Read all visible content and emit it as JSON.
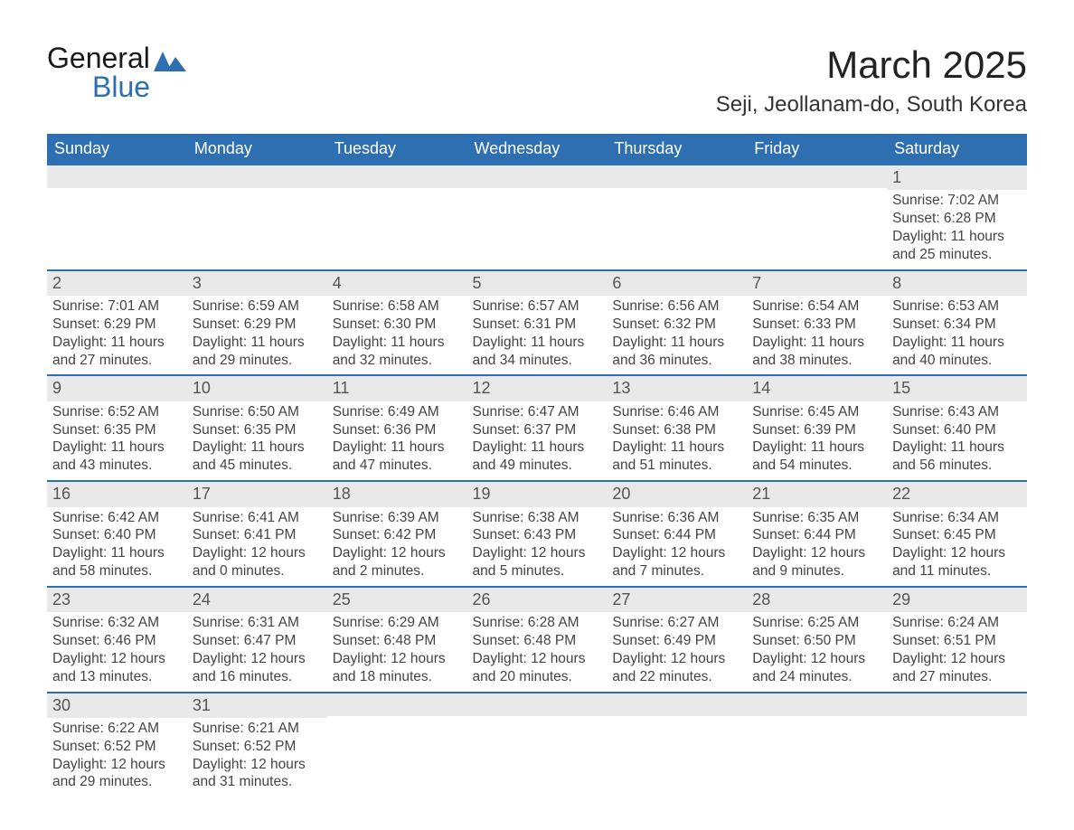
{
  "logo": {
    "text_general": "General",
    "text_blue": "Blue"
  },
  "header": {
    "month_title": "March 2025",
    "location": "Seji, Jeollanam-do, South Korea"
  },
  "colors": {
    "header_bg": "#2d6fb0",
    "header_text": "#ffffff",
    "daynum_bg": "#e9e9e9",
    "row_border": "#2d6fb0",
    "body_text": "#444444",
    "page_bg": "#ffffff"
  },
  "day_labels": [
    "Sunday",
    "Monday",
    "Tuesday",
    "Wednesday",
    "Thursday",
    "Friday",
    "Saturday"
  ],
  "weeks": [
    [
      null,
      null,
      null,
      null,
      null,
      null,
      {
        "n": "1",
        "sr": "Sunrise: 7:02 AM",
        "ss": "Sunset: 6:28 PM",
        "d1": "Daylight: 11 hours",
        "d2": "and 25 minutes."
      }
    ],
    [
      {
        "n": "2",
        "sr": "Sunrise: 7:01 AM",
        "ss": "Sunset: 6:29 PM",
        "d1": "Daylight: 11 hours",
        "d2": "and 27 minutes."
      },
      {
        "n": "3",
        "sr": "Sunrise: 6:59 AM",
        "ss": "Sunset: 6:29 PM",
        "d1": "Daylight: 11 hours",
        "d2": "and 29 minutes."
      },
      {
        "n": "4",
        "sr": "Sunrise: 6:58 AM",
        "ss": "Sunset: 6:30 PM",
        "d1": "Daylight: 11 hours",
        "d2": "and 32 minutes."
      },
      {
        "n": "5",
        "sr": "Sunrise: 6:57 AM",
        "ss": "Sunset: 6:31 PM",
        "d1": "Daylight: 11 hours",
        "d2": "and 34 minutes."
      },
      {
        "n": "6",
        "sr": "Sunrise: 6:56 AM",
        "ss": "Sunset: 6:32 PM",
        "d1": "Daylight: 11 hours",
        "d2": "and 36 minutes."
      },
      {
        "n": "7",
        "sr": "Sunrise: 6:54 AM",
        "ss": "Sunset: 6:33 PM",
        "d1": "Daylight: 11 hours",
        "d2": "and 38 minutes."
      },
      {
        "n": "8",
        "sr": "Sunrise: 6:53 AM",
        "ss": "Sunset: 6:34 PM",
        "d1": "Daylight: 11 hours",
        "d2": "and 40 minutes."
      }
    ],
    [
      {
        "n": "9",
        "sr": "Sunrise: 6:52 AM",
        "ss": "Sunset: 6:35 PM",
        "d1": "Daylight: 11 hours",
        "d2": "and 43 minutes."
      },
      {
        "n": "10",
        "sr": "Sunrise: 6:50 AM",
        "ss": "Sunset: 6:35 PM",
        "d1": "Daylight: 11 hours",
        "d2": "and 45 minutes."
      },
      {
        "n": "11",
        "sr": "Sunrise: 6:49 AM",
        "ss": "Sunset: 6:36 PM",
        "d1": "Daylight: 11 hours",
        "d2": "and 47 minutes."
      },
      {
        "n": "12",
        "sr": "Sunrise: 6:47 AM",
        "ss": "Sunset: 6:37 PM",
        "d1": "Daylight: 11 hours",
        "d2": "and 49 minutes."
      },
      {
        "n": "13",
        "sr": "Sunrise: 6:46 AM",
        "ss": "Sunset: 6:38 PM",
        "d1": "Daylight: 11 hours",
        "d2": "and 51 minutes."
      },
      {
        "n": "14",
        "sr": "Sunrise: 6:45 AM",
        "ss": "Sunset: 6:39 PM",
        "d1": "Daylight: 11 hours",
        "d2": "and 54 minutes."
      },
      {
        "n": "15",
        "sr": "Sunrise: 6:43 AM",
        "ss": "Sunset: 6:40 PM",
        "d1": "Daylight: 11 hours",
        "d2": "and 56 minutes."
      }
    ],
    [
      {
        "n": "16",
        "sr": "Sunrise: 6:42 AM",
        "ss": "Sunset: 6:40 PM",
        "d1": "Daylight: 11 hours",
        "d2": "and 58 minutes."
      },
      {
        "n": "17",
        "sr": "Sunrise: 6:41 AM",
        "ss": "Sunset: 6:41 PM",
        "d1": "Daylight: 12 hours",
        "d2": "and 0 minutes."
      },
      {
        "n": "18",
        "sr": "Sunrise: 6:39 AM",
        "ss": "Sunset: 6:42 PM",
        "d1": "Daylight: 12 hours",
        "d2": "and 2 minutes."
      },
      {
        "n": "19",
        "sr": "Sunrise: 6:38 AM",
        "ss": "Sunset: 6:43 PM",
        "d1": "Daylight: 12 hours",
        "d2": "and 5 minutes."
      },
      {
        "n": "20",
        "sr": "Sunrise: 6:36 AM",
        "ss": "Sunset: 6:44 PM",
        "d1": "Daylight: 12 hours",
        "d2": "and 7 minutes."
      },
      {
        "n": "21",
        "sr": "Sunrise: 6:35 AM",
        "ss": "Sunset: 6:44 PM",
        "d1": "Daylight: 12 hours",
        "d2": "and 9 minutes."
      },
      {
        "n": "22",
        "sr": "Sunrise: 6:34 AM",
        "ss": "Sunset: 6:45 PM",
        "d1": "Daylight: 12 hours",
        "d2": "and 11 minutes."
      }
    ],
    [
      {
        "n": "23",
        "sr": "Sunrise: 6:32 AM",
        "ss": "Sunset: 6:46 PM",
        "d1": "Daylight: 12 hours",
        "d2": "and 13 minutes."
      },
      {
        "n": "24",
        "sr": "Sunrise: 6:31 AM",
        "ss": "Sunset: 6:47 PM",
        "d1": "Daylight: 12 hours",
        "d2": "and 16 minutes."
      },
      {
        "n": "25",
        "sr": "Sunrise: 6:29 AM",
        "ss": "Sunset: 6:48 PM",
        "d1": "Daylight: 12 hours",
        "d2": "and 18 minutes."
      },
      {
        "n": "26",
        "sr": "Sunrise: 6:28 AM",
        "ss": "Sunset: 6:48 PM",
        "d1": "Daylight: 12 hours",
        "d2": "and 20 minutes."
      },
      {
        "n": "27",
        "sr": "Sunrise: 6:27 AM",
        "ss": "Sunset: 6:49 PM",
        "d1": "Daylight: 12 hours",
        "d2": "and 22 minutes."
      },
      {
        "n": "28",
        "sr": "Sunrise: 6:25 AM",
        "ss": "Sunset: 6:50 PM",
        "d1": "Daylight: 12 hours",
        "d2": "and 24 minutes."
      },
      {
        "n": "29",
        "sr": "Sunrise: 6:24 AM",
        "ss": "Sunset: 6:51 PM",
        "d1": "Daylight: 12 hours",
        "d2": "and 27 minutes."
      }
    ],
    [
      {
        "n": "30",
        "sr": "Sunrise: 6:22 AM",
        "ss": "Sunset: 6:52 PM",
        "d1": "Daylight: 12 hours",
        "d2": "and 29 minutes."
      },
      {
        "n": "31",
        "sr": "Sunrise: 6:21 AM",
        "ss": "Sunset: 6:52 PM",
        "d1": "Daylight: 12 hours",
        "d2": "and 31 minutes."
      },
      null,
      null,
      null,
      null,
      null
    ]
  ]
}
